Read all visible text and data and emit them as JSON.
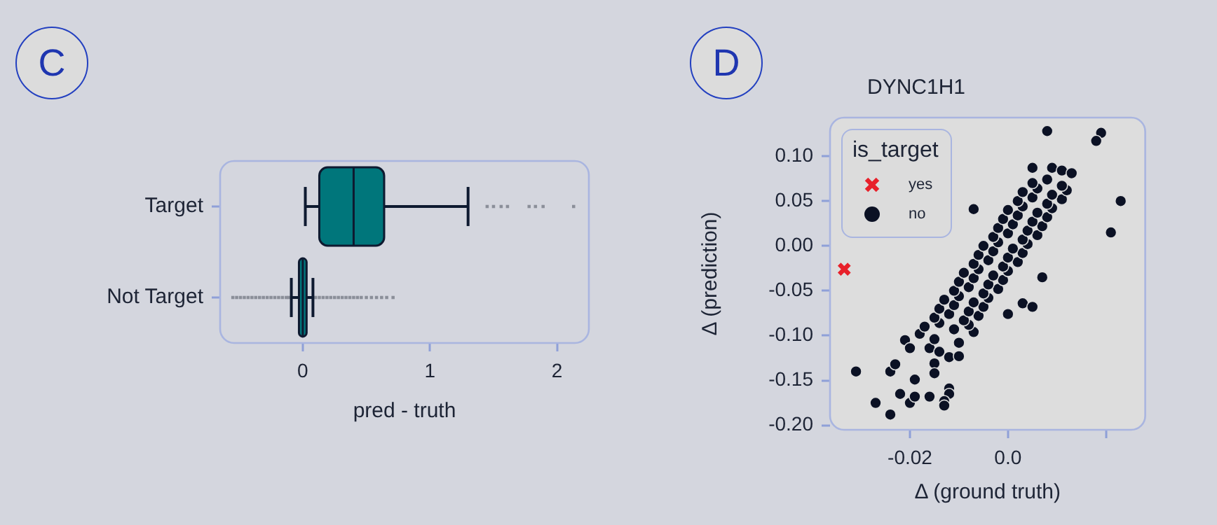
{
  "chart_data": [
    {
      "type": "box",
      "orientation": "horizontal",
      "xlabel": "pred - truth",
      "annotations": [
        "C"
      ],
      "categories": [
        "Target",
        "Not Target"
      ],
      "color": "#00767b",
      "xlim": [
        -0.65,
        2.25
      ],
      "xticks": [
        0,
        1,
        2
      ],
      "boxes": [
        {
          "low": 0.02,
          "q1": 0.13,
          "median": 0.4,
          "q3": 0.64,
          "high": 1.3,
          "outliers": [
            1.45,
            1.5,
            1.56,
            1.61,
            1.78,
            1.83,
            1.89,
            2.13
          ]
        },
        {
          "low": -0.09,
          "q1": -0.03,
          "median": 0.0,
          "q3": 0.03,
          "high": 0.08,
          "outliers": [
            -0.55,
            -0.52,
            -0.49,
            -0.46,
            -0.43,
            -0.4,
            -0.37,
            -0.34,
            -0.31,
            -0.28,
            -0.25,
            -0.22,
            -0.19,
            -0.16,
            -0.13,
            -0.11,
            0.1,
            0.13,
            0.16,
            0.19,
            0.22,
            0.25,
            0.28,
            0.31,
            0.34,
            0.37,
            0.4,
            0.43,
            0.46,
            0.5,
            0.54,
            0.58,
            0.62,
            0.66,
            0.71
          ]
        }
      ]
    },
    {
      "type": "scatter",
      "title": "DYNC1H1",
      "annotations": [
        "D"
      ],
      "xlabel": "Δ (ground truth)",
      "ylabel": "Δ (prediction)",
      "legend": "top left",
      "legend_title": "is_target",
      "xlim": [
        -0.0363,
        0.028
      ],
      "ylim": [
        -0.205,
        0.143
      ],
      "xticks": [
        {
          "value": -0.02,
          "label": "-0.02"
        },
        {
          "value": 0,
          "label": "0.0"
        },
        {
          "value": 0.02,
          "label": null
        }
      ],
      "yticks": [
        {
          "value": -0.2,
          "label": "-0.20"
        },
        {
          "value": -0.15,
          "label": "-0.15"
        },
        {
          "value": -0.1,
          "label": "-0.10"
        },
        {
          "value": -0.05,
          "label": "-0.05"
        },
        {
          "value": 0,
          "label": "0.00"
        },
        {
          "value": 0.05,
          "label": "0.05"
        },
        {
          "value": 0.1,
          "label": "0.10"
        }
      ],
      "series": [
        {
          "name": "yes",
          "color": "#e8202a",
          "marker": "cross",
          "x": [
            -0.0334
          ],
          "values": [
            -0.026
          ]
        },
        {
          "name": "no",
          "color": "#0b1124",
          "marker": "circle",
          "x": [
            0.008,
            0.019,
            0.018,
            0.005,
            0.009,
            0.011,
            0.013,
            0.023,
            0.021,
            -0.007,
            -0.031,
            -0.027,
            -0.024,
            -0.024,
            -0.023,
            -0.022,
            -0.019,
            -0.02,
            -0.019,
            -0.016,
            -0.015,
            -0.015,
            -0.012,
            -0.012,
            -0.013,
            -0.013,
            -0.021,
            -0.02,
            -0.018,
            -0.016,
            -0.014,
            -0.012,
            -0.01,
            -0.015,
            -0.01,
            0.0,
            0.003,
            0.005,
            0.007,
            -0.007,
            -0.017,
            -0.014,
            -0.011,
            -0.008,
            -0.015,
            -0.012,
            -0.009,
            -0.006,
            -0.014,
            -0.011,
            -0.008,
            -0.005,
            -0.013,
            -0.01,
            -0.007,
            -0.004,
            -0.011,
            -0.008,
            -0.005,
            -0.002,
            -0.01,
            -0.007,
            -0.004,
            -0.001,
            -0.009,
            -0.006,
            -0.003,
            0.0,
            -0.007,
            -0.004,
            -0.001,
            0.002,
            -0.006,
            -0.003,
            0.0,
            0.003,
            -0.005,
            -0.002,
            0.001,
            0.004,
            -0.003,
            0.0,
            0.003,
            0.006,
            -0.002,
            0.001,
            0.004,
            0.007,
            -0.001,
            0.002,
            0.005,
            0.008,
            0.0,
            0.003,
            0.006,
            0.009,
            0.002,
            0.005,
            0.008,
            0.011,
            0.003,
            0.006,
            0.009,
            0.012,
            0.005,
            0.008,
            0.011
          ],
          "values": [
            0.128,
            0.126,
            0.117,
            0.087,
            0.087,
            0.084,
            0.081,
            0.05,
            0.015,
            0.041,
            -0.14,
            -0.175,
            -0.188,
            -0.14,
            -0.132,
            -0.165,
            -0.149,
            -0.175,
            -0.168,
            -0.168,
            -0.131,
            -0.142,
            -0.159,
            -0.165,
            -0.173,
            -0.178,
            -0.105,
            -0.114,
            -0.098,
            -0.114,
            -0.118,
            -0.124,
            -0.123,
            -0.104,
            -0.108,
            -0.076,
            -0.064,
            -0.068,
            -0.035,
            -0.096,
            -0.09,
            -0.086,
            -0.093,
            -0.088,
            -0.08,
            -0.076,
            -0.083,
            -0.078,
            -0.07,
            -0.066,
            -0.073,
            -0.068,
            -0.06,
            -0.056,
            -0.063,
            -0.058,
            -0.05,
            -0.046,
            -0.053,
            -0.048,
            -0.04,
            -0.036,
            -0.043,
            -0.038,
            -0.03,
            -0.026,
            -0.033,
            -0.028,
            -0.02,
            -0.016,
            -0.023,
            -0.018,
            -0.01,
            -0.006,
            -0.013,
            -0.008,
            0.0,
            0.004,
            -0.003,
            0.002,
            0.01,
            0.014,
            0.007,
            0.012,
            0.02,
            0.024,
            0.017,
            0.022,
            0.03,
            0.034,
            0.027,
            0.032,
            0.04,
            0.044,
            0.037,
            0.042,
            0.05,
            0.054,
            0.047,
            0.052,
            0.06,
            0.064,
            0.057,
            0.062,
            0.07,
            0.074,
            0.067
          ]
        }
      ]
    }
  ]
}
